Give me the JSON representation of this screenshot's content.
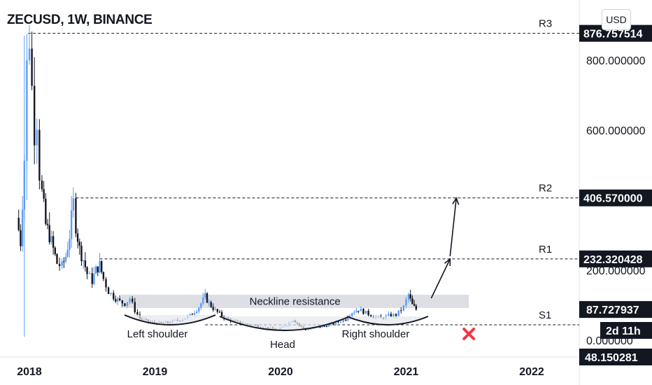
{
  "header": {
    "title": "ZECUSD, 1W, BINANCE",
    "currency": "USD"
  },
  "chart_data": {
    "type": "candlestick",
    "symbol": "ZECUSD",
    "interval": "1W",
    "exchange": "BINANCE",
    "x_ticks": [
      "2018",
      "2019",
      "2020",
      "2021",
      "2022"
    ],
    "y_ticks": [
      "800.000000",
      "600.000000",
      "200.000000"
    ],
    "ylim": [
      -10,
      900
    ],
    "levels": [
      {
        "name": "R3",
        "value": 876.757514,
        "label": "876.757514",
        "start": 2017.99
      },
      {
        "name": "R2",
        "value": 406.57,
        "label": "406.570000",
        "start": 2018.37
      },
      {
        "name": "R1",
        "value": 232.320428,
        "label": "232.320428",
        "start": 2018.56
      },
      {
        "name": "S1",
        "value": 44,
        "label": "",
        "start": 2019.4
      }
    ],
    "current_price": {
      "value": 87.727937,
      "label": "87.727937"
    },
    "countdown": "2d 11h",
    "bottom_tag": "48.150281",
    "partial_tick": "0.000000",
    "neckline_zone": {
      "low": 92,
      "high": 130,
      "from": 2018.73,
      "to": 2021.5,
      "label": "Neckline resistance"
    },
    "annotations": {
      "left_shoulder": "Left shoulder",
      "head": "Head",
      "right_shoulder": "Right shoulder"
    },
    "projection_arrows": [
      {
        "from": [
          2021.2,
          120
        ],
        "to": [
          2021.35,
          232
        ]
      },
      {
        "from": [
          2021.35,
          240
        ],
        "to": [
          2021.4,
          406
        ]
      }
    ],
    "invalidation_marker": {
      "x": 2021.5,
      "y": 18
    },
    "price_path": [
      [
        2017.9,
        350
      ],
      [
        2017.93,
        280
      ],
      [
        2017.96,
        520
      ],
      [
        2017.98,
        780
      ],
      [
        2018.0,
        870
      ],
      [
        2018.02,
        720
      ],
      [
        2018.04,
        600
      ],
      [
        2018.06,
        640
      ],
      [
        2018.08,
        480
      ],
      [
        2018.1,
        420
      ],
      [
        2018.13,
        330
      ],
      [
        2018.16,
        300
      ],
      [
        2018.19,
        260
      ],
      [
        2018.22,
        220
      ],
      [
        2018.26,
        210
      ],
      [
        2018.29,
        240
      ],
      [
        2018.32,
        300
      ],
      [
        2018.35,
        390
      ],
      [
        2018.37,
        330
      ],
      [
        2018.4,
        260
      ],
      [
        2018.43,
        230
      ],
      [
        2018.46,
        190
      ],
      [
        2018.5,
        170
      ],
      [
        2018.53,
        200
      ],
      [
        2018.56,
        215
      ],
      [
        2018.59,
        175
      ],
      [
        2018.63,
        140
      ],
      [
        2018.67,
        125
      ],
      [
        2018.72,
        110
      ],
      [
        2018.76,
        105
      ],
      [
        2018.8,
        120
      ],
      [
        2018.84,
        85
      ],
      [
        2018.88,
        62
      ],
      [
        2018.93,
        55
      ],
      [
        2018.98,
        50
      ],
      [
        2019.05,
        48
      ],
      [
        2019.12,
        52
      ],
      [
        2019.2,
        58
      ],
      [
        2019.28,
        70
      ],
      [
        2019.35,
        95
      ],
      [
        2019.4,
        125
      ],
      [
        2019.43,
        105
      ],
      [
        2019.48,
        85
      ],
      [
        2019.55,
        65
      ],
      [
        2019.62,
        55
      ],
      [
        2019.7,
        48
      ],
      [
        2019.8,
        42
      ],
      [
        2019.9,
        35
      ],
      [
        2019.98,
        30
      ],
      [
        2020.05,
        45
      ],
      [
        2020.1,
        60
      ],
      [
        2020.15,
        42
      ],
      [
        2020.2,
        30
      ],
      [
        2020.28,
        35
      ],
      [
        2020.35,
        40
      ],
      [
        2020.42,
        48
      ],
      [
        2020.48,
        55
      ],
      [
        2020.52,
        60
      ],
      [
        2020.57,
        80
      ],
      [
        2020.62,
        88
      ],
      [
        2020.68,
        78
      ],
      [
        2020.74,
        68
      ],
      [
        2020.8,
        62
      ],
      [
        2020.86,
        70
      ],
      [
        2020.92,
        72
      ],
      [
        2020.98,
        95
      ],
      [
        2021.02,
        130
      ],
      [
        2021.05,
        100
      ],
      [
        2021.08,
        88
      ]
    ]
  }
}
